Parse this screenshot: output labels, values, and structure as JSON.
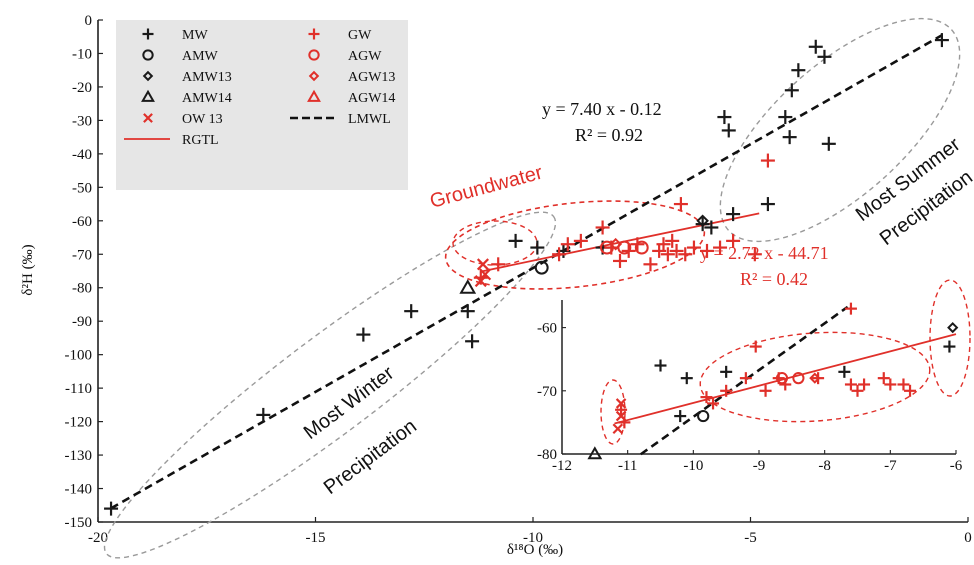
{
  "chart_data": [
    {
      "type": "scatter",
      "xlabel": "δ¹⁸O (‰)",
      "ylabel": "δ²H (‰)",
      "xlim": [
        -20,
        0
      ],
      "ylim": [
        -150,
        0
      ],
      "x_ticks": [
        "-20",
        "-15",
        "-10",
        "-5",
        "0"
      ],
      "y_ticks": [
        "0",
        "-10",
        "-20",
        "-30",
        "-40",
        "-50",
        "-60",
        "-70",
        "-80",
        "-90",
        "-100",
        "-110",
        "-120",
        "-130",
        "-140",
        "-150"
      ],
      "grid": false,
      "legend_position": "top-left",
      "legend": [
        {
          "key": "MW",
          "label": "MW",
          "marker": "plus",
          "color": "#1a1a1a"
        },
        {
          "key": "GW",
          "label": "GW",
          "marker": "plus",
          "color": "#e0302a"
        },
        {
          "key": "AMW",
          "label": "AMW",
          "marker": "circle",
          "color": "#1a1a1a"
        },
        {
          "key": "AGW",
          "label": "AGW",
          "marker": "circle",
          "color": "#e0302a"
        },
        {
          "key": "AMW13",
          "label": "AMW13",
          "marker": "diamond",
          "color": "#1a1a1a"
        },
        {
          "key": "AGW13",
          "label": "AGW13",
          "marker": "diamond",
          "color": "#e0302a"
        },
        {
          "key": "AMW14",
          "label": "AMW14",
          "marker": "triangle",
          "color": "#1a1a1a"
        },
        {
          "key": "AGW14",
          "label": "AGW14",
          "marker": "triangle",
          "color": "#e0302a"
        },
        {
          "key": "OW13",
          "label": "OW 13",
          "marker": "cross",
          "color": "#e0302a"
        },
        {
          "key": "LMWL",
          "label": "LMWL",
          "marker": "dashed-line",
          "color": "#111111"
        },
        {
          "key": "RGTL",
          "label": "RGTL",
          "marker": "solid-line",
          "color": "#e0302a"
        }
      ],
      "series": [
        {
          "name": "MW",
          "points": [
            [
              -19.7,
              -146
            ],
            [
              -16.2,
              -118
            ],
            [
              -13.9,
              -94
            ],
            [
              -12.8,
              -87
            ],
            [
              -11.4,
              -96
            ],
            [
              -11.5,
              -87
            ],
            [
              -10.4,
              -66
            ],
            [
              -9.9,
              -68
            ],
            [
              -9.3,
              -69
            ],
            [
              -8.4,
              -68
            ],
            [
              -6.1,
              -61
            ],
            [
              -5.9,
              -62
            ],
            [
              -5.6,
              -29
            ],
            [
              -5.5,
              -33
            ],
            [
              -5.4,
              -58
            ],
            [
              -4.6,
              -55
            ],
            [
              -4.2,
              -29
            ],
            [
              -4.1,
              -35
            ],
            [
              -4.05,
              -21
            ],
            [
              -3.9,
              -15
            ],
            [
              -3.5,
              -8
            ],
            [
              -3.3,
              -11
            ],
            [
              -3.2,
              -37
            ],
            [
              -0.6,
              -6
            ]
          ]
        },
        {
          "name": "GW",
          "points": [
            [
              -11.2,
              -77
            ],
            [
              -10.8,
              -73
            ],
            [
              -9.4,
              -70
            ],
            [
              -9.2,
              -67
            ],
            [
              -8.9,
              -66
            ],
            [
              -8.4,
              -62
            ],
            [
              -8.2,
              -68
            ],
            [
              -8.0,
              -72
            ],
            [
              -7.8,
              -69
            ],
            [
              -7.6,
              -67
            ],
            [
              -7.3,
              -73
            ],
            [
              -7.1,
              -69
            ],
            [
              -7.0,
              -67
            ],
            [
              -6.9,
              -70
            ],
            [
              -6.8,
              -66
            ],
            [
              -6.7,
              -69
            ],
            [
              -6.5,
              -70
            ],
            [
              -6.3,
              -68
            ],
            [
              -6.0,
              -69
            ],
            [
              -5.7,
              -68
            ],
            [
              -5.4,
              -66
            ],
            [
              -4.9,
              -70
            ],
            [
              -4.6,
              -42
            ],
            [
              -6.6,
              -55
            ]
          ]
        },
        {
          "name": "AMW",
          "points": [
            [
              -9.8,
              -74
            ]
          ]
        },
        {
          "name": "AGW",
          "points": [
            [
              -8.3,
              -68
            ],
            [
              -7.9,
              -68
            ],
            [
              -7.5,
              -68
            ]
          ]
        },
        {
          "name": "AMW13",
          "points": [
            [
              -6.1,
              -60
            ]
          ]
        },
        {
          "name": "AGW13",
          "points": [
            [
              -8.1,
              -67
            ]
          ]
        },
        {
          "name": "AMW14",
          "points": [
            [
              -11.5,
              -80
            ]
          ]
        },
        {
          "name": "AGW14",
          "points": []
        },
        {
          "name": "OW13",
          "points": [
            [
              -11.15,
              -73
            ],
            [
              -11.1,
              -76
            ],
            [
              -11.2,
              -78
            ]
          ]
        }
      ],
      "lines": [
        {
          "name": "LMWL",
          "slope": 7.4,
          "intercept": -0.12,
          "x_range": [
            -19.7,
            -0.6
          ],
          "style": "dashed",
          "color": "#111111"
        },
        {
          "name": "RGTL",
          "slope": 2.72,
          "intercept": -44.71,
          "x_range": [
            -11.2,
            -4.8
          ],
          "style": "solid",
          "color": "#e0302a"
        }
      ],
      "annotations": {
        "lmwl_equation": "y = 7.40 x - 0.12",
        "lmwl_r2": "R² = 0.92",
        "rgtl_equation": "y = 2.72 x - 44.71",
        "rgtl_r2": "R² = 0.42",
        "groundwater": "Groundwater",
        "most_summer_1": "Most Summer",
        "most_summer_2": "Precipitation",
        "most_winter_1": "Most Winter",
        "most_winter_2": "Precipitation"
      }
    },
    {
      "type": "scatter",
      "xlim": [
        -12,
        -6
      ],
      "ylim": [
        -80,
        -55
      ],
      "x_ticks": [
        "-12",
        "-11",
        "-10",
        "-9",
        "-8",
        "-7",
        "-6"
      ],
      "y_ticks": [
        "-60",
        "-70",
        "-80"
      ],
      "series": [
        {
          "name": "MW",
          "points": [
            [
              -10.5,
              -66
            ],
            [
              -10.1,
              -68
            ],
            [
              -10.2,
              -74
            ],
            [
              -9.5,
              -67
            ],
            [
              -7.7,
              -67
            ],
            [
              -6.1,
              -63
            ]
          ]
        },
        {
          "name": "GW",
          "points": [
            [
              -11.1,
              -73
            ],
            [
              -11.05,
              -75
            ],
            [
              -9.8,
              -71
            ],
            [
              -9.7,
              -72
            ],
            [
              -9.5,
              -70
            ],
            [
              -9.2,
              -68
            ],
            [
              -9.05,
              -63
            ],
            [
              -8.9,
              -70
            ],
            [
              -8.7,
              -68
            ],
            [
              -8.6,
              -69
            ],
            [
              -8.1,
              -68
            ],
            [
              -7.6,
              -69
            ],
            [
              -7.5,
              -70
            ],
            [
              -7.4,
              -69
            ],
            [
              -7.1,
              -68
            ],
            [
              -6.8,
              -69
            ],
            [
              -6.7,
              -70
            ],
            [
              -7.0,
              -69
            ],
            [
              -7.6,
              -57
            ]
          ]
        },
        {
          "name": "AMW",
          "points": [
            [
              -9.85,
              -74
            ]
          ]
        },
        {
          "name": "AGW",
          "points": [
            [
              -8.65,
              -68
            ],
            [
              -8.4,
              -68
            ]
          ]
        },
        {
          "name": "AMW13",
          "points": [
            [
              -6.05,
              -60
            ]
          ]
        },
        {
          "name": "AGW13",
          "points": [
            [
              -8.15,
              -68
            ]
          ]
        },
        {
          "name": "AMW14",
          "points": [
            [
              -11.5,
              -80
            ]
          ]
        },
        {
          "name": "OW13",
          "points": [
            [
              -11.1,
              -72
            ],
            [
              -11.1,
              -74
            ],
            [
              -11.15,
              -76
            ]
          ]
        }
      ],
      "lines": [
        {
          "name": "LMWL",
          "slope": 7.4,
          "intercept": -0.12,
          "x_range": [
            -10.8,
            -7.65
          ],
          "style": "dashed",
          "color": "#111111"
        },
        {
          "name": "RGTL",
          "slope": 2.72,
          "intercept": -44.71,
          "x_range": [
            -11.2,
            -6.0
          ],
          "style": "solid",
          "color": "#e0302a"
        }
      ]
    }
  ]
}
